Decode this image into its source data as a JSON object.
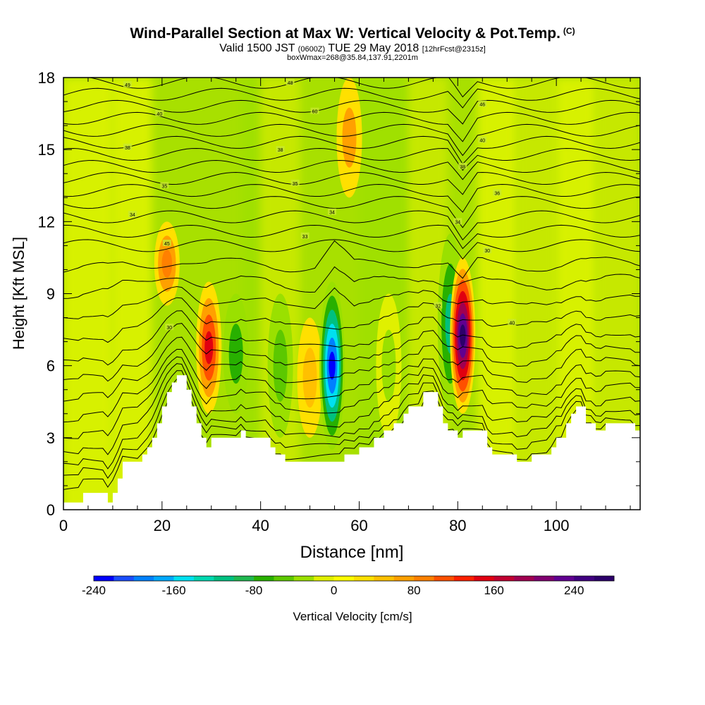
{
  "title": {
    "main": "Wind-Parallel Section at Max W: Vertical Velocity & Pot.Temp.",
    "copyright": "(C)",
    "valid_prefix": "Valid 1500 JST",
    "valid_utc": "(0600Z)",
    "valid_date": "TUE 29 May 2018",
    "fcst": "[12hrFcst@2315z]",
    "boxinfo": "boxWmax=268@35.84,137.91,2201m"
  },
  "colors": {
    "background": "#ffffff",
    "terrain": "#ffffff",
    "contour": "#000000"
  },
  "chart_data": {
    "type": "heatmap",
    "xlabel": "Distance [nm]",
    "ylabel": "Height [Kft MSL]",
    "xlim": [
      0,
      117
    ],
    "ylim": [
      0,
      18
    ],
    "xticks": [
      0,
      20,
      40,
      60,
      80,
      100
    ],
    "yticks": [
      0,
      3,
      6,
      9,
      12,
      15,
      18
    ],
    "colorbar": {
      "label": "Vertical Velocity [cm/s]",
      "min": -240,
      "max": 280,
      "step": 20,
      "tick_values": [
        -240,
        -160,
        -80,
        0,
        80,
        160,
        240
      ],
      "colors": [
        "#0000ff",
        "#1a4dff",
        "#0080ff",
        "#00a8ff",
        "#00e0f0",
        "#00d8b0",
        "#00c080",
        "#20b850",
        "#28b000",
        "#5cc800",
        "#9ae000",
        "#e0f000",
        "#ffff00",
        "#ffe000",
        "#ffc000",
        "#ffa000",
        "#ff8000",
        "#ff5000",
        "#ff2000",
        "#e00010",
        "#c00030",
        "#a00050",
        "#800070",
        "#600090",
        "#400080",
        "#2c006a"
      ]
    },
    "velocity_features": [
      {
        "x": 21,
        "y_range": [
          8.5,
          12
        ],
        "w": 90
      },
      {
        "x": 29.5,
        "y_range": [
          4,
          9.5
        ],
        "w": 150
      },
      {
        "x": 35,
        "y_range": [
          4,
          9
        ],
        "w": -70
      },
      {
        "x": 44,
        "y_range": [
          3,
          9
        ],
        "w": -60
      },
      {
        "x": 50,
        "y_range": [
          3,
          8
        ],
        "w": 40
      },
      {
        "x": 54.5,
        "y_range": [
          2.5,
          9.5
        ],
        "w": -240
      },
      {
        "x": 58,
        "y_range": [
          13,
          18
        ],
        "w": 60
      },
      {
        "x": 66,
        "y_range": [
          3,
          9
        ],
        "w": -30
      },
      {
        "x": 78.5,
        "y_range": [
          4,
          11.5
        ],
        "w": -120
      },
      {
        "x": 81,
        "y_range": [
          4,
          10.5
        ],
        "w": 268
      }
    ],
    "theta_labels": [
      {
        "x": 13,
        "y": 17.7,
        "text": "49"
      },
      {
        "x": 46,
        "y": 17.8,
        "text": "48"
      },
      {
        "x": 19.5,
        "y": 16.5,
        "text": "40"
      },
      {
        "x": 51,
        "y": 16.6,
        "text": "60"
      },
      {
        "x": 85,
        "y": 16.9,
        "text": "46"
      },
      {
        "x": 13,
        "y": 15.1,
        "text": "38"
      },
      {
        "x": 44,
        "y": 15.0,
        "text": "38"
      },
      {
        "x": 85,
        "y": 15.4,
        "text": "40"
      },
      {
        "x": 20.5,
        "y": 13.5,
        "text": "35"
      },
      {
        "x": 47,
        "y": 13.6,
        "text": "35"
      },
      {
        "x": 81,
        "y": 14.3,
        "text": "38"
      },
      {
        "x": 88,
        "y": 13.2,
        "text": "36"
      },
      {
        "x": 14,
        "y": 12.3,
        "text": "34"
      },
      {
        "x": 54.5,
        "y": 12.4,
        "text": "34"
      },
      {
        "x": 80,
        "y": 12.0,
        "text": "34"
      },
      {
        "x": 21,
        "y": 11.1,
        "text": "45"
      },
      {
        "x": 49,
        "y": 11.4,
        "text": "33"
      },
      {
        "x": 86,
        "y": 10.8,
        "text": "30"
      },
      {
        "x": 21.5,
        "y": 7.6,
        "text": "30"
      },
      {
        "x": 76,
        "y": 8.5,
        "text": "32"
      },
      {
        "x": 91,
        "y": 7.8,
        "text": "40"
      }
    ],
    "terrain": [
      [
        0,
        0.3
      ],
      [
        4,
        0.3
      ],
      [
        4,
        0.7
      ],
      [
        9,
        0.7
      ],
      [
        9,
        0.3
      ],
      [
        10,
        0.3
      ],
      [
        10,
        0.7
      ],
      [
        11,
        0.7
      ],
      [
        11,
        1.3
      ],
      [
        12,
        1.3
      ],
      [
        12,
        2.0
      ],
      [
        16,
        2.0
      ],
      [
        16,
        2.3
      ],
      [
        17,
        2.3
      ],
      [
        17,
        2.6
      ],
      [
        18,
        2.6
      ],
      [
        18,
        3.0
      ],
      [
        19,
        3.0
      ],
      [
        19,
        3.6
      ],
      [
        20,
        3.6
      ],
      [
        20,
        4.3
      ],
      [
        21,
        4.3
      ],
      [
        21,
        4.9
      ],
      [
        22,
        4.9
      ],
      [
        22,
        5.3
      ],
      [
        23,
        5.3
      ],
      [
        23,
        5.6
      ],
      [
        25,
        5.6
      ],
      [
        25,
        5.0
      ],
      [
        26,
        5.0
      ],
      [
        26,
        4.3
      ],
      [
        27,
        4.3
      ],
      [
        27,
        3.6
      ],
      [
        28,
        3.6
      ],
      [
        28,
        3.0
      ],
      [
        29,
        3.0
      ],
      [
        29,
        2.6
      ],
      [
        30,
        2.6
      ],
      [
        30,
        3.0
      ],
      [
        36,
        3.0
      ],
      [
        36,
        3.3
      ],
      [
        37,
        3.3
      ],
      [
        37,
        3.0
      ],
      [
        42,
        3.0
      ],
      [
        42,
        2.6
      ],
      [
        43,
        2.6
      ],
      [
        43,
        2.3
      ],
      [
        45,
        2.3
      ],
      [
        45,
        2.0
      ],
      [
        57,
        2.0
      ],
      [
        57,
        2.3
      ],
      [
        60,
        2.3
      ],
      [
        60,
        2.6
      ],
      [
        63,
        2.6
      ],
      [
        63,
        3.0
      ],
      [
        65,
        3.0
      ],
      [
        65,
        3.3
      ],
      [
        67,
        3.3
      ],
      [
        67,
        3.6
      ],
      [
        69,
        3.6
      ],
      [
        69,
        4.0
      ],
      [
        70,
        4.0
      ],
      [
        70,
        4.3
      ],
      [
        73,
        4.3
      ],
      [
        73,
        4.9
      ],
      [
        76,
        4.9
      ],
      [
        76,
        4.3
      ],
      [
        77,
        4.3
      ],
      [
        77,
        3.6
      ],
      [
        78,
        3.6
      ],
      [
        78,
        3.3
      ],
      [
        80,
        3.3
      ],
      [
        80,
        3.0
      ],
      [
        81,
        3.0
      ],
      [
        81,
        3.3
      ],
      [
        86,
        3.3
      ],
      [
        86,
        2.6
      ],
      [
        87,
        2.6
      ],
      [
        87,
        2.3
      ],
      [
        92,
        2.3
      ],
      [
        92,
        2.0
      ],
      [
        95,
        2.0
      ],
      [
        95,
        2.3
      ],
      [
        99,
        2.3
      ],
      [
        99,
        2.6
      ],
      [
        100,
        2.6
      ],
      [
        100,
        3.0
      ],
      [
        102,
        3.0
      ],
      [
        102,
        3.6
      ],
      [
        103,
        3.6
      ],
      [
        103,
        4.0
      ],
      [
        104,
        4.0
      ],
      [
        104,
        4.3
      ],
      [
        106,
        4.3
      ],
      [
        106,
        3.6
      ],
      [
        108,
        3.6
      ],
      [
        108,
        3.3
      ],
      [
        110,
        3.3
      ],
      [
        110,
        3.6
      ],
      [
        116,
        3.6
      ],
      [
        116,
        3.3
      ],
      [
        117,
        3.3
      ]
    ]
  }
}
